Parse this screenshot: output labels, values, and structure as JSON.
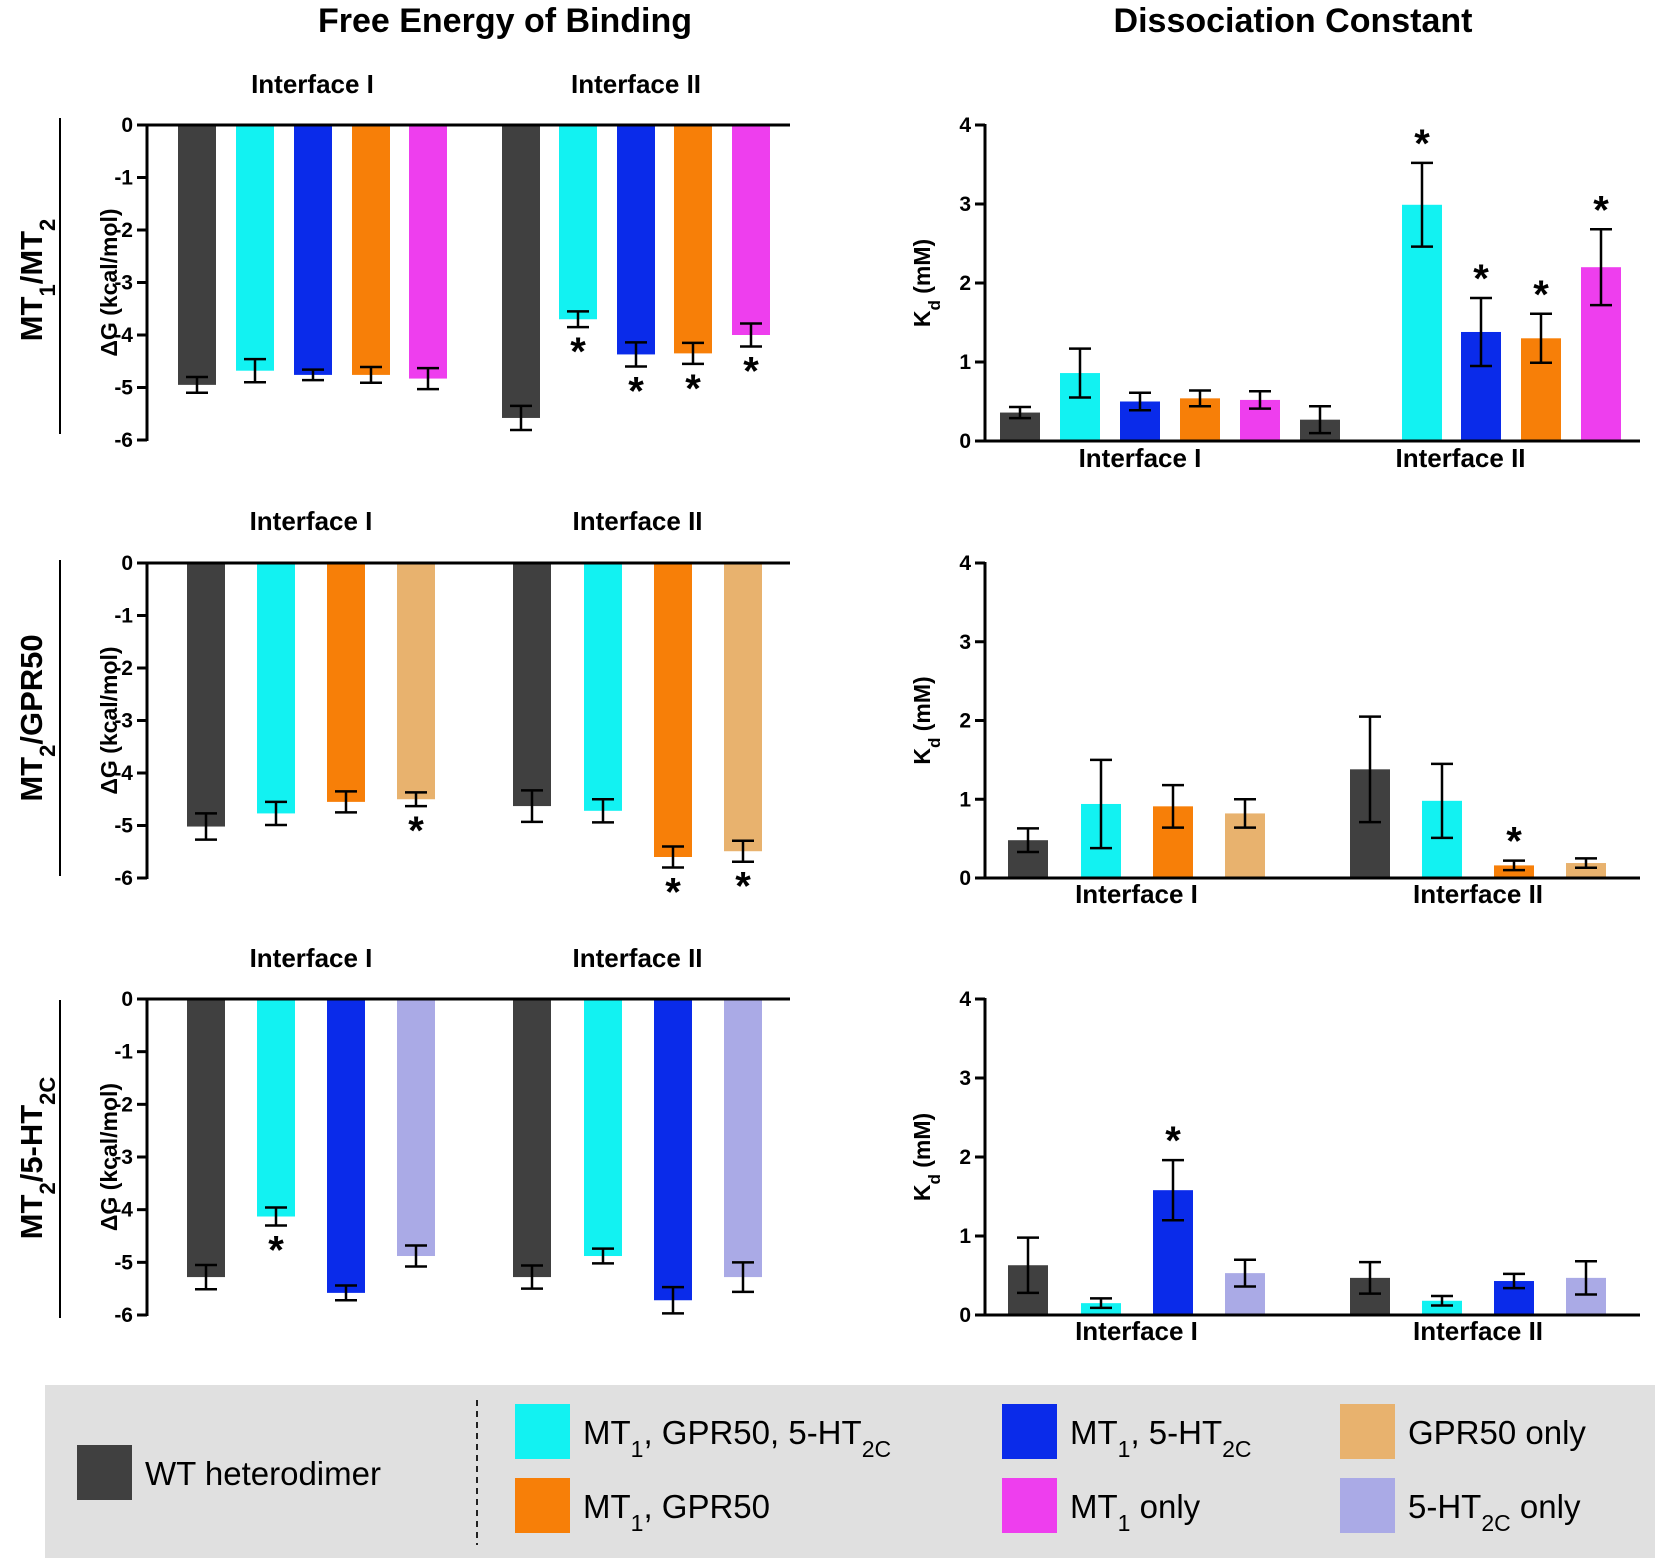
{
  "titles": {
    "free_energy": "Free Energy of Binding",
    "dissociation": "Dissociation Constant"
  },
  "row_labels": [
    {
      "parts": [
        {
          "t": "MT"
        },
        {
          "t": "1",
          "sub": true
        },
        {
          "t": "/MT"
        },
        {
          "t": "2",
          "sub": true
        }
      ]
    },
    {
      "parts": [
        {
          "t": "MT"
        },
        {
          "t": "2",
          "sub": true
        },
        {
          "t": "/GPR50"
        }
      ]
    },
    {
      "parts": [
        {
          "t": "MT"
        },
        {
          "t": "2",
          "sub": true
        },
        {
          "t": "/5-HT"
        },
        {
          "t": "2C",
          "sub": true
        }
      ]
    }
  ],
  "colors": {
    "wt": "#404040",
    "mt1_gpr50_5ht2c": "#12F2F2",
    "mt1_5ht2c": "#0A2BEA",
    "mt1_gpr50": "#F77F08",
    "mt1_only": "#EE3EEE",
    "gpr50_only": "#E8B26E",
    "ht2c_only": "#AAAAE6"
  },
  "axis_labels": {
    "dg_parts": [
      {
        "t": "ΔG (kcal/mol)"
      }
    ],
    "kd_parts": [
      {
        "t": "K"
      },
      {
        "t": "d",
        "sub": true
      },
      {
        "t": " (mM)"
      }
    ]
  },
  "legend": {
    "items": [
      {
        "key": "wt",
        "parts": [
          {
            "t": "WT heterodimer"
          }
        ]
      },
      {
        "key": "mt1_gpr50_5ht2c",
        "parts": [
          {
            "t": "MT"
          },
          {
            "t": "1",
            "sub": true
          },
          {
            "t": ", GPR50, 5-HT"
          },
          {
            "t": "2C",
            "sub": true
          }
        ]
      },
      {
        "key": "mt1_gpr50",
        "parts": [
          {
            "t": "MT"
          },
          {
            "t": "1",
            "sub": true
          },
          {
            "t": ", GPR50"
          }
        ]
      },
      {
        "key": "mt1_5ht2c",
        "parts": [
          {
            "t": "MT"
          },
          {
            "t": "1",
            "sub": true
          },
          {
            "t": ", 5-HT"
          },
          {
            "t": "2C",
            "sub": true
          }
        ]
      },
      {
        "key": "mt1_only",
        "parts": [
          {
            "t": "MT"
          },
          {
            "t": "1",
            "sub": true
          },
          {
            "t": " only"
          }
        ]
      },
      {
        "key": "gpr50_only",
        "parts": [
          {
            "t": "GPR50 only"
          }
        ]
      },
      {
        "key": "ht2c_only",
        "parts": [
          {
            "t": "5-HT"
          },
          {
            "t": "2C",
            "sub": true
          },
          {
            "t": " only"
          }
        ]
      }
    ]
  },
  "chart_data": [
    {
      "id": "dg_mt1_mt2",
      "type": "bar",
      "title": "Free Energy of Binding",
      "ylabel": "ΔG (kcal/mol)",
      "ylim": [
        -6,
        0
      ],
      "yticks": [
        0,
        -1,
        -2,
        -3,
        -4,
        -5,
        -6
      ],
      "groups": [
        {
          "label": "Interface I",
          "bars": [
            {
              "key": "wt",
              "value": -4.95,
              "err": 0.15,
              "star": false
            },
            {
              "key": "mt1_gpr50_5ht2c",
              "value": -4.68,
              "err": 0.22,
              "star": false
            },
            {
              "key": "mt1_5ht2c",
              "value": -4.76,
              "err": 0.1,
              "star": false
            },
            {
              "key": "mt1_gpr50",
              "value": -4.76,
              "err": 0.15,
              "star": false
            },
            {
              "key": "mt1_only",
              "value": -4.83,
              "err": 0.2,
              "star": false
            }
          ]
        },
        {
          "label": "Interface II",
          "bars": [
            {
              "key": "wt",
              "value": -5.58,
              "err": 0.23,
              "star": false
            },
            {
              "key": "mt1_gpr50_5ht2c",
              "value": -3.7,
              "err": 0.15,
              "star": true
            },
            {
              "key": "mt1_5ht2c",
              "value": -4.37,
              "err": 0.23,
              "star": true
            },
            {
              "key": "mt1_gpr50",
              "value": -4.35,
              "err": 0.2,
              "star": true
            },
            {
              "key": "mt1_only",
              "value": -4.0,
              "err": 0.22,
              "star": true
            }
          ]
        }
      ]
    },
    {
      "id": "kd_mt1_mt2",
      "type": "bar",
      "title": "Dissociation Constant",
      "ylabel": "Kd (mM)",
      "ylim": [
        0,
        4
      ],
      "yticks": [
        0,
        1,
        2,
        3,
        4
      ],
      "groups": [
        {
          "label": "Interface I",
          "bars": [
            {
              "key": "wt",
              "value": 0.36,
              "err": 0.07,
              "star": false
            },
            {
              "key": "mt1_gpr50_5ht2c",
              "value": 0.86,
              "err": 0.31,
              "star": false
            },
            {
              "key": "mt1_5ht2c",
              "value": 0.5,
              "err": 0.11,
              "star": false
            },
            {
              "key": "mt1_gpr50",
              "value": 0.54,
              "err": 0.1,
              "star": false
            },
            {
              "key": "mt1_only",
              "value": 0.52,
              "err": 0.11,
              "star": false
            }
          ]
        },
        {
          "label": "Interface II",
          "bars": [
            {
              "key": "wt",
              "value": 0.27,
              "err": 0.17,
              "star": false
            },
            {
              "key": "mt1_gpr50_5ht2c",
              "value": 2.99,
              "err": 0.53,
              "star": true
            },
            {
              "key": "mt1_5ht2c",
              "value": 1.38,
              "err": 0.43,
              "star": true
            },
            {
              "key": "mt1_gpr50",
              "value": 1.3,
              "err": 0.31,
              "star": true
            },
            {
              "key": "mt1_only",
              "value": 2.2,
              "err": 0.48,
              "star": true
            }
          ]
        }
      ]
    },
    {
      "id": "dg_mt2_gpr50",
      "type": "bar",
      "title": "Free Energy of Binding",
      "ylabel": "ΔG (kcal/mol)",
      "ylim": [
        -6,
        0
      ],
      "yticks": [
        0,
        -1,
        -2,
        -3,
        -4,
        -5,
        -6
      ],
      "groups": [
        {
          "label": "Interface I",
          "bars": [
            {
              "key": "wt",
              "value": -5.02,
              "err": 0.25,
              "star": false
            },
            {
              "key": "mt1_gpr50_5ht2c",
              "value": -4.77,
              "err": 0.22,
              "star": false
            },
            {
              "key": "mt1_gpr50",
              "value": -4.55,
              "err": 0.2,
              "star": false
            },
            {
              "key": "gpr50_only",
              "value": -4.5,
              "err": 0.13,
              "star": true
            }
          ]
        },
        {
          "label": "Interface II",
          "bars": [
            {
              "key": "wt",
              "value": -4.63,
              "err": 0.3,
              "star": false
            },
            {
              "key": "mt1_gpr50_5ht2c",
              "value": -4.72,
              "err": 0.22,
              "star": false
            },
            {
              "key": "mt1_gpr50",
              "value": -5.6,
              "err": 0.2,
              "star": true
            },
            {
              "key": "gpr50_only",
              "value": -5.49,
              "err": 0.2,
              "star": true
            }
          ]
        }
      ]
    },
    {
      "id": "kd_mt2_gpr50",
      "type": "bar",
      "title": "Dissociation Constant",
      "ylabel": "Kd (mM)",
      "ylim": [
        0,
        4
      ],
      "yticks": [
        0,
        1,
        2,
        3,
        4
      ],
      "groups": [
        {
          "label": "Interface I",
          "bars": [
            {
              "key": "wt",
              "value": 0.48,
              "err": 0.15,
              "star": false
            },
            {
              "key": "mt1_gpr50_5ht2c",
              "value": 0.94,
              "err": 0.56,
              "star": false
            },
            {
              "key": "mt1_gpr50",
              "value": 0.91,
              "err": 0.27,
              "star": false
            },
            {
              "key": "gpr50_only",
              "value": 0.82,
              "err": 0.18,
              "star": false
            }
          ]
        },
        {
          "label": "Interface II",
          "bars": [
            {
              "key": "wt",
              "value": 1.38,
              "err": 0.67,
              "star": false
            },
            {
              "key": "mt1_gpr50_5ht2c",
              "value": 0.98,
              "err": 0.47,
              "star": false
            },
            {
              "key": "mt1_gpr50",
              "value": 0.16,
              "err": 0.06,
              "star": true
            },
            {
              "key": "gpr50_only",
              "value": 0.19,
              "err": 0.06,
              "star": false
            }
          ]
        }
      ]
    },
    {
      "id": "dg_mt2_5ht2c",
      "type": "bar",
      "title": "Free Energy of Binding",
      "ylabel": "ΔG (kcal/mol)",
      "ylim": [
        -6,
        0
      ],
      "yticks": [
        0,
        -1,
        -2,
        -3,
        -4,
        -5,
        -6
      ],
      "groups": [
        {
          "label": "Interface I",
          "bars": [
            {
              "key": "wt",
              "value": -5.28,
              "err": 0.23,
              "star": false
            },
            {
              "key": "mt1_gpr50_5ht2c",
              "value": -4.13,
              "err": 0.17,
              "star": true
            },
            {
              "key": "mt1_5ht2c",
              "value": -5.58,
              "err": 0.14,
              "star": false
            },
            {
              "key": "ht2c_only",
              "value": -4.88,
              "err": 0.2,
              "star": false
            }
          ]
        },
        {
          "label": "Interface II",
          "bars": [
            {
              "key": "wt",
              "value": -5.28,
              "err": 0.22,
              "star": false
            },
            {
              "key": "mt1_gpr50_5ht2c",
              "value": -4.88,
              "err": 0.14,
              "star": false
            },
            {
              "key": "mt1_5ht2c",
              "value": -5.72,
              "err": 0.25,
              "star": false
            },
            {
              "key": "ht2c_only",
              "value": -5.28,
              "err": 0.28,
              "star": false
            }
          ]
        }
      ]
    },
    {
      "id": "kd_mt2_5ht2c",
      "type": "bar",
      "title": "Dissociation Constant",
      "ylabel": "Kd (mM)",
      "ylim": [
        0,
        4
      ],
      "yticks": [
        0,
        1,
        2,
        3,
        4
      ],
      "groups": [
        {
          "label": "Interface I",
          "bars": [
            {
              "key": "wt",
              "value": 0.63,
              "err": 0.35,
              "star": false
            },
            {
              "key": "mt1_gpr50_5ht2c",
              "value": 0.15,
              "err": 0.06,
              "star": false
            },
            {
              "key": "mt1_5ht2c",
              "value": 1.58,
              "err": 0.38,
              "star": true
            },
            {
              "key": "ht2c_only",
              "value": 0.53,
              "err": 0.17,
              "star": false
            }
          ]
        },
        {
          "label": "Interface II",
          "bars": [
            {
              "key": "wt",
              "value": 0.47,
              "err": 0.2,
              "star": false
            },
            {
              "key": "mt1_gpr50_5ht2c",
              "value": 0.18,
              "err": 0.06,
              "star": false
            },
            {
              "key": "mt1_5ht2c",
              "value": 0.43,
              "err": 0.09,
              "star": false
            },
            {
              "key": "ht2c_only",
              "value": 0.47,
              "err": 0.21,
              "star": false
            }
          ]
        }
      ]
    }
  ]
}
